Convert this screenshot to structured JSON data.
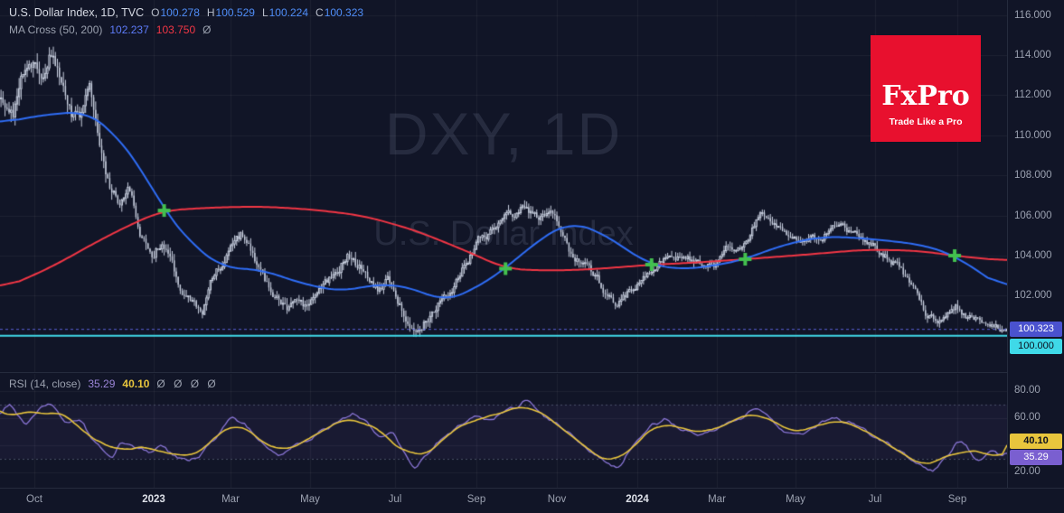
{
  "header": {
    "symbol_title": "U.S. Dollar Index, 1D, TVC",
    "ohlc": {
      "o_label": "O",
      "o": "100.278",
      "h_label": "H",
      "h": "100.529",
      "l_label": "L",
      "l": "100.224",
      "c_label": "C",
      "c": "100.323"
    },
    "ma_legend": {
      "label": "MA Cross (50, 200)",
      "ma50_value": "102.237",
      "ma200_value": "103.750",
      "hidden_marker": "Ø"
    }
  },
  "rsi_legend": {
    "label": "RSI (14, close)",
    "value": "35.29",
    "smooth_value": "40.10",
    "hidden_markers": "Ø Ø Ø Ø"
  },
  "watermark": {
    "line1": "DXY, 1D",
    "line2": "U.S. Dollar Index"
  },
  "logo": {
    "brand": "FxPro",
    "tagline": "Trade Like a Pro"
  },
  "price_axis": {
    "labels": [
      "116.000",
      "114.000",
      "112.000",
      "110.000",
      "108.000",
      "106.000",
      "104.000",
      "102.000"
    ],
    "last_price_badge": "100.323",
    "level_badge": "100.000"
  },
  "rsi_axis": {
    "labels": [
      "80.00",
      "60.00",
      "20.00"
    ],
    "smooth_badge": "40.10",
    "value_badge": "35.29"
  },
  "colors": {
    "bg": "#111527",
    "grid": "rgba(255,255,255,0.055)",
    "candle": "#c8cfdf",
    "ma50": "#2f6df6",
    "ma200": "#f23645",
    "cross": "#43c04f",
    "level_line": "#3fd9e8",
    "last_price_line": "#5a62d8",
    "rsi_line": "#8a76d6",
    "rsi_smooth": "#e8c53d",
    "rsi_band": "rgba(126,87,194,0.08)",
    "rsi_band_edge": "#494f66",
    "badge_lastprice_bg": "#4a52cf",
    "badge_level_bg": "#3fd9e8",
    "badge_rsi_smooth_bg": "#e8c53d",
    "badge_rsi_value_bg": "#7a5fd0"
  },
  "chart_data": {
    "type": "candlestick",
    "symbol": "DXY",
    "title": "U.S. Dollar Index",
    "interval": "1D",
    "exchange": "TVC",
    "ohlc_current": {
      "open": 100.278,
      "high": 100.529,
      "low": 100.224,
      "close": 100.323
    },
    "indicators": [
      {
        "name": "MA Cross (50, 200)",
        "ma50": 102.237,
        "ma200": 103.75
      },
      {
        "name": "RSI (14, close)",
        "rsi": 35.29,
        "rsi_smooth": 40.1
      }
    ],
    "time_ticks": [
      {
        "label": "Oct",
        "f": 0.034,
        "major": false
      },
      {
        "label": "2023",
        "f": 0.153,
        "major": true
      },
      {
        "label": "Mar",
        "f": 0.229,
        "major": false
      },
      {
        "label": "May",
        "f": 0.308,
        "major": false
      },
      {
        "label": "Jul",
        "f": 0.392,
        "major": false
      },
      {
        "label": "Sep",
        "f": 0.473,
        "major": false
      },
      {
        "label": "Nov",
        "f": 0.553,
        "major": false
      },
      {
        "label": "2024",
        "f": 0.633,
        "major": true
      },
      {
        "label": "Mar",
        "f": 0.712,
        "major": false
      },
      {
        "label": "May",
        "f": 0.79,
        "major": false
      },
      {
        "label": "Jul",
        "f": 0.869,
        "major": false
      },
      {
        "label": "Sep",
        "f": 0.951,
        "major": false
      }
    ],
    "main": {
      "ylim": [
        98.19,
        116.75
      ],
      "grid_prices": [
        116,
        114,
        112,
        110,
        108,
        106,
        104,
        102,
        100
      ],
      "hline": 100.0,
      "last_price": 100.323,
      "candle_count": 500,
      "close_path": [
        [
          0,
          112.2
        ],
        [
          0.012,
          111.3
        ],
        [
          0.02,
          112.6
        ],
        [
          0.03,
          113.6
        ],
        [
          0.04,
          113.2
        ],
        [
          0.05,
          114.3
        ],
        [
          0.058,
          112.9
        ],
        [
          0.068,
          111.2
        ],
        [
          0.078,
          110.5
        ],
        [
          0.088,
          112.7
        ],
        [
          0.098,
          110.2
        ],
        [
          0.108,
          107.6
        ],
        [
          0.118,
          106.4
        ],
        [
          0.128,
          107.1
        ],
        [
          0.138,
          105.2
        ],
        [
          0.15,
          104.3
        ],
        [
          0.16,
          104.8
        ],
        [
          0.17,
          103.4
        ],
        [
          0.18,
          102.3
        ],
        [
          0.19,
          101.7
        ],
        [
          0.2,
          101.2
        ],
        [
          0.21,
          102.8
        ],
        [
          0.22,
          103.6
        ],
        [
          0.23,
          104.3
        ],
        [
          0.24,
          105.0
        ],
        [
          0.25,
          104.1
        ],
        [
          0.26,
          102.9
        ],
        [
          0.27,
          102.2
        ],
        [
          0.285,
          101.5
        ],
        [
          0.3,
          101.3
        ],
        [
          0.315,
          101.8
        ],
        [
          0.33,
          102.9
        ],
        [
          0.345,
          104.1
        ],
        [
          0.36,
          103.3
        ],
        [
          0.375,
          102.3
        ],
        [
          0.385,
          103.0
        ],
        [
          0.395,
          101.8
        ],
        [
          0.405,
          100.3
        ],
        [
          0.412,
          99.8
        ],
        [
          0.42,
          100.6
        ],
        [
          0.43,
          101.3
        ],
        [
          0.445,
          102.0
        ],
        [
          0.46,
          103.4
        ],
        [
          0.475,
          104.6
        ],
        [
          0.49,
          105.3
        ],
        [
          0.505,
          106.0
        ],
        [
          0.52,
          106.4
        ],
        [
          0.535,
          105.7
        ],
        [
          0.55,
          105.9
        ],
        [
          0.565,
          104.3
        ],
        [
          0.58,
          103.5
        ],
        [
          0.595,
          102.6
        ],
        [
          0.61,
          101.6
        ],
        [
          0.62,
          101.9
        ],
        [
          0.635,
          102.9
        ],
        [
          0.65,
          103.4
        ],
        [
          0.665,
          104.3
        ],
        [
          0.68,
          103.9
        ],
        [
          0.695,
          103.7
        ],
        [
          0.71,
          103.5
        ],
        [
          0.725,
          104.4
        ],
        [
          0.74,
          104.6
        ],
        [
          0.755,
          106.1
        ],
        [
          0.77,
          105.3
        ],
        [
          0.785,
          104.8
        ],
        [
          0.8,
          104.5
        ],
        [
          0.815,
          104.9
        ],
        [
          0.83,
          105.5
        ],
        [
          0.845,
          105.2
        ],
        [
          0.86,
          104.6
        ],
        [
          0.875,
          104.3
        ],
        [
          0.89,
          103.6
        ],
        [
          0.905,
          102.6
        ],
        [
          0.92,
          101.1
        ],
        [
          0.935,
          100.7
        ],
        [
          0.95,
          101.4
        ],
        [
          0.962,
          100.9
        ],
        [
          0.975,
          100.9
        ],
        [
          0.985,
          100.5
        ],
        [
          1,
          100.32
        ]
      ],
      "volatility": [
        [
          0,
          1.9
        ],
        [
          0.06,
          1.8
        ],
        [
          0.1,
          1.6
        ],
        [
          0.14,
          1.2
        ],
        [
          0.2,
          1.0
        ],
        [
          0.41,
          1.2
        ],
        [
          0.5,
          1.0
        ],
        [
          0.75,
          0.85
        ],
        [
          1,
          0.8
        ]
      ],
      "ma50": [
        [
          0,
          110.6
        ],
        [
          0.04,
          111.0
        ],
        [
          0.085,
          111.2
        ],
        [
          0.11,
          110.3
        ],
        [
          0.14,
          108.4
        ],
        [
          0.163,
          106.25
        ],
        [
          0.19,
          104.6
        ],
        [
          0.22,
          103.4
        ],
        [
          0.26,
          103.3
        ],
        [
          0.3,
          102.6
        ],
        [
          0.34,
          102.2
        ],
        [
          0.375,
          102.6
        ],
        [
          0.41,
          102.4
        ],
        [
          0.44,
          101.7
        ],
        [
          0.47,
          102.3
        ],
        [
          0.502,
          103.35
        ],
        [
          0.53,
          104.6
        ],
        [
          0.565,
          105.7
        ],
        [
          0.6,
          105.1
        ],
        [
          0.63,
          104.0
        ],
        [
          0.647,
          103.55
        ],
        [
          0.675,
          103.3
        ],
        [
          0.71,
          103.5
        ],
        [
          0.74,
          103.82
        ],
        [
          0.775,
          104.5
        ],
        [
          0.815,
          104.95
        ],
        [
          0.85,
          104.9
        ],
        [
          0.89,
          104.7
        ],
        [
          0.92,
          104.5
        ],
        [
          0.948,
          104.0
        ],
        [
          0.975,
          103.1
        ],
        [
          1,
          102.24
        ]
      ],
      "ma200": [
        [
          0,
          102.3
        ],
        [
          0.05,
          103.4
        ],
        [
          0.1,
          104.8
        ],
        [
          0.14,
          105.8
        ],
        [
          0.163,
          106.25
        ],
        [
          0.21,
          106.4
        ],
        [
          0.26,
          106.45
        ],
        [
          0.31,
          106.3
        ],
        [
          0.36,
          106.0
        ],
        [
          0.41,
          105.3
        ],
        [
          0.46,
          104.3
        ],
        [
          0.502,
          103.35
        ],
        [
          0.54,
          103.25
        ],
        [
          0.58,
          103.3
        ],
        [
          0.61,
          103.4
        ],
        [
          0.647,
          103.55
        ],
        [
          0.69,
          103.65
        ],
        [
          0.74,
          103.82
        ],
        [
          0.8,
          104.05
        ],
        [
          0.86,
          104.3
        ],
        [
          0.91,
          104.25
        ],
        [
          0.948,
          104.0
        ],
        [
          0.975,
          103.85
        ],
        [
          1,
          103.75
        ]
      ],
      "crosses": [
        [
          0.163,
          106.25
        ],
        [
          0.502,
          103.35
        ],
        [
          0.647,
          103.55
        ],
        [
          0.74,
          103.82
        ],
        [
          0.948,
          104.0
        ]
      ]
    },
    "rsi": {
      "ylim": [
        8,
        92.7
      ],
      "grid": [
        80,
        60,
        40,
        20
      ],
      "band": [
        30,
        70
      ],
      "value": 35.29,
      "smooth_value": 40.1,
      "path": [
        [
          0,
          62
        ],
        [
          0.01,
          72
        ],
        [
          0.025,
          55
        ],
        [
          0.04,
          68
        ],
        [
          0.05,
          71
        ],
        [
          0.065,
          56
        ],
        [
          0.08,
          60
        ],
        [
          0.09,
          45
        ],
        [
          0.1,
          38
        ],
        [
          0.11,
          30
        ],
        [
          0.12,
          42
        ],
        [
          0.135,
          38
        ],
        [
          0.15,
          35
        ],
        [
          0.16,
          41
        ],
        [
          0.175,
          31
        ],
        [
          0.19,
          28
        ],
        [
          0.2,
          34
        ],
        [
          0.215,
          47
        ],
        [
          0.23,
          60
        ],
        [
          0.24,
          57
        ],
        [
          0.255,
          46
        ],
        [
          0.27,
          36
        ],
        [
          0.28,
          31
        ],
        [
          0.29,
          40
        ],
        [
          0.305,
          42
        ],
        [
          0.32,
          50
        ],
        [
          0.335,
          57
        ],
        [
          0.35,
          64
        ],
        [
          0.365,
          55
        ],
        [
          0.38,
          46
        ],
        [
          0.39,
          51
        ],
        [
          0.4,
          36
        ],
        [
          0.412,
          24
        ],
        [
          0.425,
          33
        ],
        [
          0.44,
          46
        ],
        [
          0.455,
          54
        ],
        [
          0.47,
          61
        ],
        [
          0.485,
          58
        ],
        [
          0.5,
          64
        ],
        [
          0.515,
          69
        ],
        [
          0.525,
          74
        ],
        [
          0.54,
          62
        ],
        [
          0.555,
          55
        ],
        [
          0.57,
          46
        ],
        [
          0.585,
          37
        ],
        [
          0.6,
          29
        ],
        [
          0.615,
          22
        ],
        [
          0.63,
          42
        ],
        [
          0.645,
          53
        ],
        [
          0.66,
          60
        ],
        [
          0.675,
          52
        ],
        [
          0.69,
          47
        ],
        [
          0.705,
          49
        ],
        [
          0.72,
          57
        ],
        [
          0.735,
          59
        ],
        [
          0.75,
          68
        ],
        [
          0.765,
          59
        ],
        [
          0.78,
          48
        ],
        [
          0.795,
          49
        ],
        [
          0.81,
          54
        ],
        [
          0.825,
          61
        ],
        [
          0.84,
          57
        ],
        [
          0.855,
          53
        ],
        [
          0.87,
          45
        ],
        [
          0.885,
          39
        ],
        [
          0.9,
          32
        ],
        [
          0.915,
          26
        ],
        [
          0.928,
          19
        ],
        [
          0.94,
          32
        ],
        [
          0.95,
          41
        ],
        [
          0.958,
          43
        ],
        [
          0.966,
          30
        ],
        [
          0.975,
          31
        ],
        [
          0.985,
          38
        ],
        [
          0.993,
          33
        ],
        [
          1,
          35.29
        ]
      ]
    }
  }
}
